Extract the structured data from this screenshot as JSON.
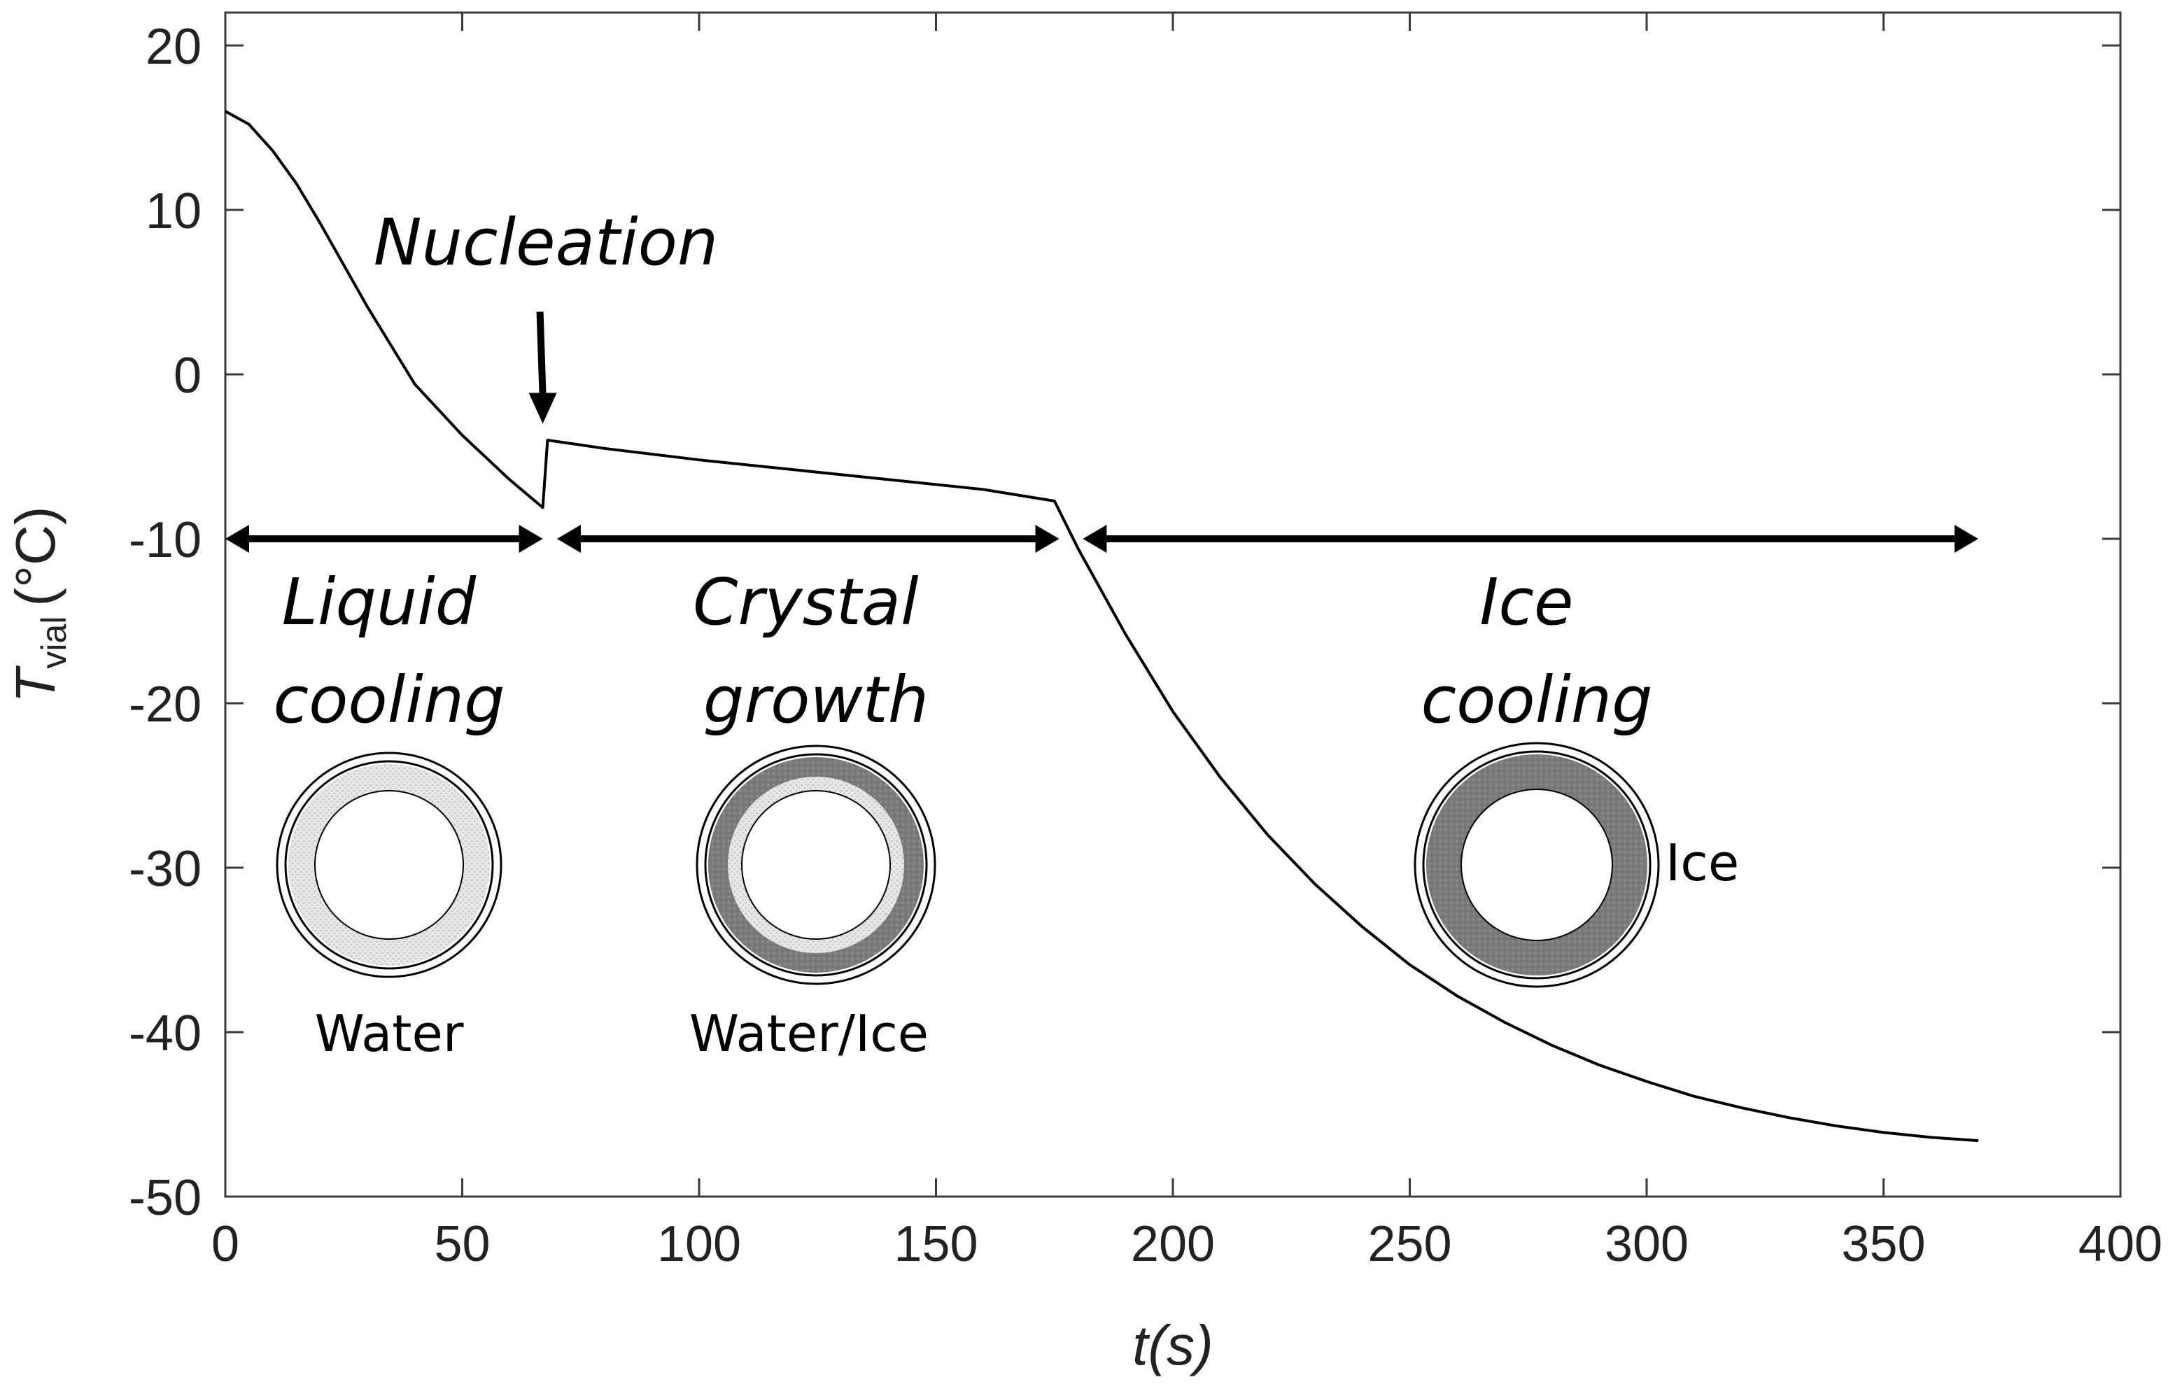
{
  "chart_data": {
    "type": "line",
    "title": "",
    "xlabel": "t(s)",
    "ylabel": {
      "symbol": "T",
      "subscript": "vial",
      "unit": "(°C)"
    },
    "xlim": [
      0,
      400
    ],
    "ylim": [
      -50,
      22
    ],
    "xticks": [
      0,
      50,
      100,
      150,
      200,
      250,
      300,
      350,
      400
    ],
    "yticks": [
      20,
      10,
      0,
      -10,
      -20,
      -30,
      -40,
      -50
    ],
    "xtick_labels": [
      "0",
      "50",
      "100",
      "150",
      "200",
      "250",
      "300",
      "350",
      "400"
    ],
    "ytick_labels": [
      "20",
      "10",
      "0",
      "-10",
      "-20",
      "-30",
      "-40",
      "-50"
    ],
    "grid": false,
    "series": [
      {
        "name": "T_vial",
        "color": "#000000",
        "x": [
          0,
          5,
          10,
          15,
          20,
          30,
          40,
          50,
          60,
          67,
          68,
          80,
          100,
          120,
          140,
          160,
          175,
          180,
          190,
          200,
          210,
          220,
          230,
          240,
          250,
          260,
          270,
          280,
          290,
          300,
          310,
          320,
          330,
          340,
          350,
          360,
          370
        ],
        "y": [
          16,
          15.2,
          13.6,
          11.6,
          9.2,
          4.1,
          -0.6,
          -3.7,
          -6.4,
          -8.1,
          -4.0,
          -4.5,
          -5.2,
          -5.8,
          -6.4,
          -7.0,
          -7.7,
          -10.6,
          -15.8,
          -20.5,
          -24.5,
          -28.0,
          -31.0,
          -33.6,
          -35.9,
          -37.8,
          -39.4,
          -40.8,
          -42.0,
          -43.0,
          -43.9,
          -44.6,
          -45.2,
          -45.7,
          -46.1,
          -46.4,
          -46.6
        ]
      }
    ],
    "annotations": [
      {
        "id": "nucleation",
        "text": "Nucleation",
        "arrow_to": [
          67,
          -3.0
        ]
      },
      {
        "id": "liquid-cooling",
        "lines": [
          "Liquid",
          "cooling"
        ],
        "span": [
          0,
          67
        ],
        "y": -10
      },
      {
        "id": "crystal-growth",
        "lines": [
          "Crystal",
          "growth"
        ],
        "span": [
          70,
          176
        ],
        "y": -10
      },
      {
        "id": "ice-cooling",
        "lines": [
          "Ice",
          "cooling"
        ],
        "span": [
          181,
          370
        ],
        "y": -10
      }
    ],
    "vials": [
      {
        "id": "water-vial",
        "label": "Water",
        "state": "liquid"
      },
      {
        "id": "water-ice-vial",
        "label": "Water/Ice",
        "state": "mixed"
      },
      {
        "id": "ice-vial",
        "label": "Ice",
        "state": "ice"
      }
    ]
  }
}
